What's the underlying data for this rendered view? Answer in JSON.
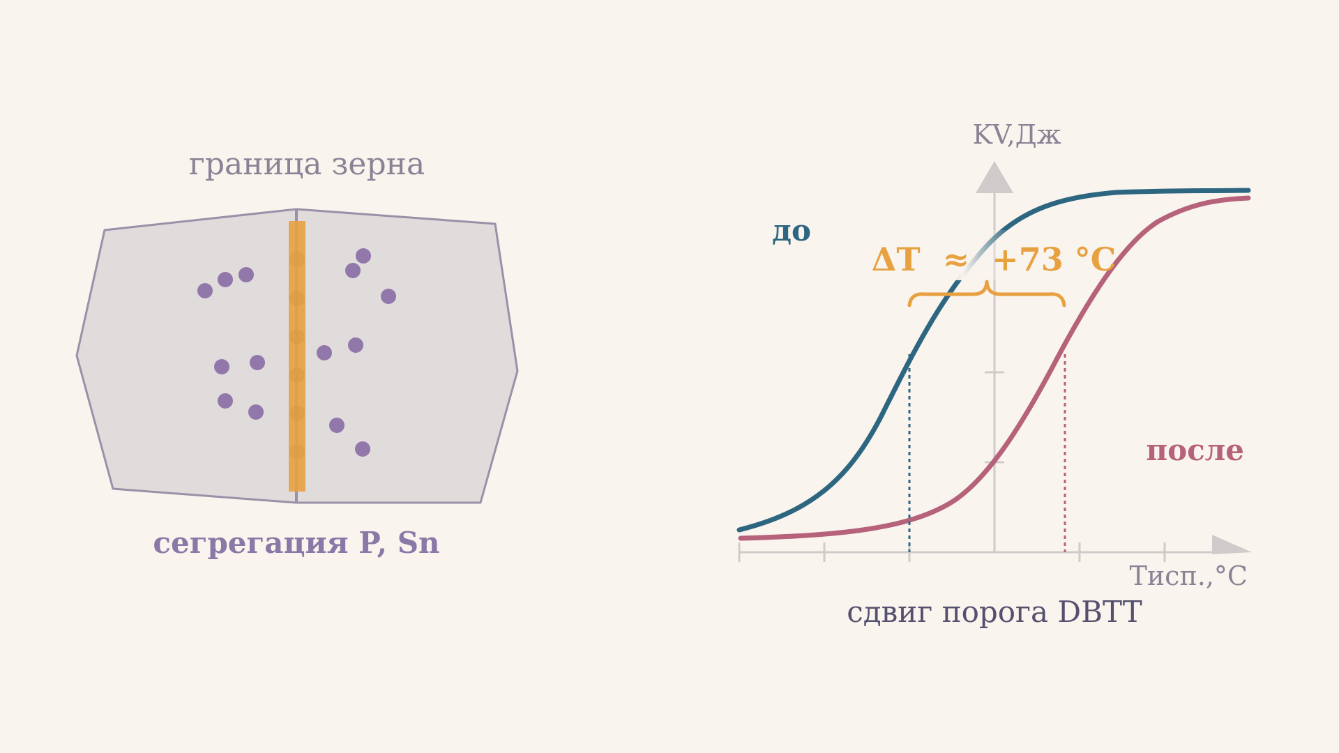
{
  "colors": {
    "background": "#faf4ee",
    "grain_fill": "#e0dcdb",
    "grain_stroke": "#9a90a8",
    "segregation": "#e8a140",
    "atom": "#9277aa",
    "axis": "#cfcbcb",
    "before_curve": "#2d6680",
    "after_curve": "#b5627a",
    "delta_text": "#e8a140",
    "text_muted": "#8a8295",
    "text_dark": "#55506e"
  },
  "grain_diagram": {
    "title": "граница зерна",
    "caption": "сегрегация P, Sn"
  },
  "graph": {
    "y_axis_label": "KV,Дж",
    "x_axis_label": "Тисп.,°С",
    "before_label": "до",
    "after_label": "после",
    "delta_label": "ΔT  ≈  +73 °C",
    "caption": "сдвиг порога DBTT"
  }
}
